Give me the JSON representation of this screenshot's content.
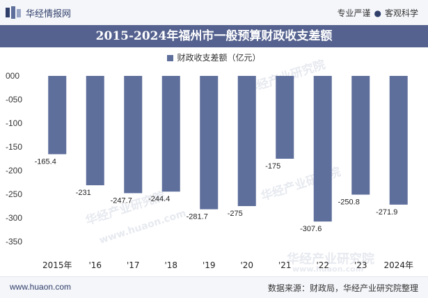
{
  "header": {
    "brand": "华经情报网",
    "tagline_left": "专业严谨",
    "tagline_right": "客观科学"
  },
  "watermark": {
    "cn": "华经产业研究院",
    "en": "www.huaon.com"
  },
  "footer": {
    "url": "www.huaon.com",
    "source": "数据来源：财政局，华经产业研究院整理"
  },
  "colors": {
    "bar": "#5f6f9c",
    "title_bg": "#55628f",
    "brand": "#2f3f6a"
  },
  "chart_data": {
    "type": "bar",
    "title": "2015-2024年福州市一般预算财政收支差额",
    "legend": "财政收支差额（亿元）",
    "categories": [
      "2015年",
      "'16",
      "'17",
      "'18",
      "'19",
      "'20",
      "'21",
      "'22",
      "'23",
      "2024年"
    ],
    "series": [
      {
        "name": "财政收支差额（亿元）",
        "values": [
          -165.4,
          -231,
          -247.7,
          -244.4,
          -281.7,
          -275,
          -175,
          -307.6,
          -250.8,
          -271.9
        ],
        "labels": [
          "-165.4",
          "-231",
          "-247.7",
          "-244.4",
          "-281.7",
          "-275",
          "-175",
          "-307.6",
          "-250.8",
          "-271.9"
        ]
      }
    ],
    "ylim": [
      -350,
      0
    ],
    "yticks": [
      0,
      -50,
      -100,
      -150,
      -200,
      -250,
      -300,
      -350
    ],
    "ytick_labels": [
      "000",
      "-050",
      "-100",
      "-150",
      "-200",
      "-250",
      "-300",
      "-350"
    ],
    "grid": false,
    "legend_position": "top-center"
  }
}
